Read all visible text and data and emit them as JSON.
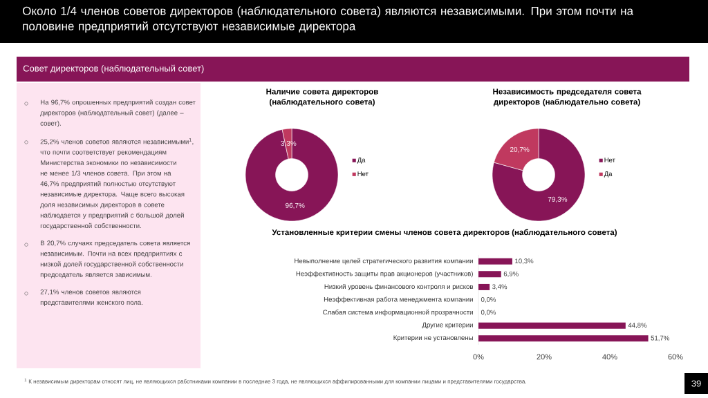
{
  "chart_data": [
    {
      "type": "other",
      "title": "Около 1/4 членов советов директоров (наблюдательного совета) являются независимыми. При этом почти на половине предприятий отсутствуют независимые директора",
      "subtitle": "Совет директоров  (наблюдательный совет)",
      "annotations": [
        "На 96,7% опрошенных  предприятий создан совет директоров (наблюдательный совет) (далее – совет).",
        "25,2% членов советов являются независимыми$^{1}$, что почти соответствует рекомендациям Министерства экономики по независимости не менее 1/3 членов совета. При этом на 46,7% предприятий полностью  отсутствуют независимые директора. Чаще всего высокая доля независимых директоров в совете наблюдается у предприятий с большой долей государственной собственности.",
        "В 20,7% случаях председатель совета является независимым. Почти на всех предприятиях с низкой долей государственной собственности председатель является зависимым.",
        "27,1% членов советов являются представителями женского пола.",
        "$^{1}$ К независимым  директорам относят лиц, не являющихся  работниками компании в последние 3 года, не являющихся  аффилированными для компании лицами и представителями  государства.",
        "39"
      ]
    },
    {
      "type": "donut",
      "title": "Наличие совета директоров (наблюдательного совета)",
      "categories": [
        "Да",
        "Нет"
      ],
      "values": [
        96.7,
        3.3
      ],
      "colors": [
        "#871557",
        "#c0395f"
      ],
      "value_labels": [
        "96,7%",
        "3,3%"
      ],
      "legend": "right"
    },
    {
      "type": "donut",
      "title": "Независимость председателя совета директоров (наблюдательно совета)",
      "categories": [
        "Нет",
        "Да"
      ],
      "values": [
        79.3,
        20.7
      ],
      "colors": [
        "#871557",
        "#c0395f"
      ],
      "value_labels": [
        "79,3%",
        "20,7%"
      ],
      "legend": "right"
    },
    {
      "type": "bar",
      "orientation": "horizontal",
      "title": "Установленные критерии смены членов совета директоров (наблюдательного совета)",
      "categories": [
        "Невыполнение целей стратегического  развития компании",
        "Неэффективность защиты прав акционеров (участников)",
        "Низкий уровень финансового контроля  и рисков",
        "Неэффективная работа менеджмента компании",
        "Слабая система информационной прозрачности",
        "Другие критерии",
        "Критерии не установлены"
      ],
      "values": [
        10.3,
        6.9,
        3.4,
        0.0,
        0.0,
        44.8,
        51.7
      ],
      "color": "#871557",
      "value_labels": [
        "10,3%",
        "6,9%",
        "3,4%",
        "0,0%",
        "0,0%",
        "44,8%",
        "51,7%"
      ],
      "xlim": [
        0,
        60
      ],
      "xticks": [
        {
          "value": 0,
          "label": "0%"
        },
        {
          "value": 20,
          "label": "20%"
        },
        {
          "value": 40,
          "label": "40%"
        },
        {
          "value": 60,
          "label": "60%"
        }
      ]
    }
  ]
}
